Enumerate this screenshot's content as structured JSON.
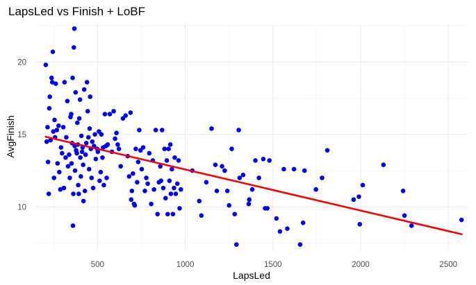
{
  "chart_data": {
    "type": "scatter",
    "title": "LapsLed vs Finish + LoBF",
    "xlabel": "LapsLed",
    "ylabel": "AvgFinish",
    "xlim": [
      150,
      2610
    ],
    "ylim": [
      7.0,
      22.6
    ],
    "x_ticks": [
      500,
      1000,
      1500,
      2000,
      2500
    ],
    "y_ticks": [
      10,
      15,
      20
    ],
    "grid": true,
    "point_color": "#0000ff",
    "line_color": "#ff0000",
    "trend_line": {
      "x": [
        200,
        2580
      ],
      "y": [
        14.85,
        8.1
      ]
    },
    "points": [
      [
        205,
        19.8
      ],
      [
        210,
        14.5
      ],
      [
        215,
        15.5
      ],
      [
        218,
        13.1
      ],
      [
        222,
        10.9
      ],
      [
        225,
        16.8
      ],
      [
        228,
        17.6
      ],
      [
        232,
        14.6
      ],
      [
        238,
        18.9
      ],
      [
        242,
        18.6
      ],
      [
        245,
        20.7
      ],
      [
        248,
        15.2
      ],
      [
        252,
        12.0
      ],
      [
        255,
        16.0
      ],
      [
        258,
        14.8
      ],
      [
        262,
        18.5
      ],
      [
        268,
        15.3
      ],
      [
        272,
        13.0
      ],
      [
        278,
        15.6
      ],
      [
        282,
        12.4
      ],
      [
        288,
        11.2
      ],
      [
        292,
        14.1
      ],
      [
        298,
        13.7
      ],
      [
        305,
        15.5
      ],
      [
        308,
        11.3
      ],
      [
        312,
        18.6
      ],
      [
        318,
        13.4
      ],
      [
        322,
        14.8
      ],
      [
        328,
        17.3
      ],
      [
        332,
        12.8
      ],
      [
        338,
        13.6
      ],
      [
        342,
        12.0
      ],
      [
        346,
        16.2
      ],
      [
        350,
        16.4
      ],
      [
        352,
        13.0
      ],
      [
        355,
        14.4
      ],
      [
        358,
        18.9
      ],
      [
        360,
        8.7
      ],
      [
        362,
        10.9
      ],
      [
        365,
        21.0
      ],
      [
        368,
        22.3
      ],
      [
        370,
        14.2
      ],
      [
        372,
        12.5
      ],
      [
        375,
        17.9
      ],
      [
        378,
        13.9
      ],
      [
        382,
        13.7
      ],
      [
        385,
        15.8
      ],
      [
        388,
        14.3
      ],
      [
        390,
        11.5
      ],
      [
        393,
        10.9
      ],
      [
        396,
        16.1
      ],
      [
        400,
        17.4
      ],
      [
        402,
        13.4
      ],
      [
        405,
        12.1
      ],
      [
        408,
        14.9
      ],
      [
        412,
        13.8
      ],
      [
        415,
        14.1
      ],
      [
        418,
        12.9
      ],
      [
        420,
        10.4
      ],
      [
        424,
        18.1
      ],
      [
        428,
        11.1
      ],
      [
        432,
        13.6
      ],
      [
        436,
        14.4
      ],
      [
        440,
        18.6
      ],
      [
        444,
        16.6
      ],
      [
        448,
        14.8
      ],
      [
        452,
        12.6
      ],
      [
        455,
        15.4
      ],
      [
        458,
        17.6
      ],
      [
        462,
        14.0
      ],
      [
        466,
        12.0
      ],
      [
        470,
        14.5
      ],
      [
        475,
        11.3
      ],
      [
        480,
        14.2
      ],
      [
        485,
        15.0
      ],
      [
        490,
        13.3
      ],
      [
        498,
        14.0
      ],
      [
        502,
        13.8
      ],
      [
        508,
        15.2
      ],
      [
        512,
        11.8
      ],
      [
        518,
        12.4
      ],
      [
        522,
        15.0
      ],
      [
        528,
        13.4
      ],
      [
        532,
        14.1
      ],
      [
        536,
        11.5
      ],
      [
        542,
        16.4
      ],
      [
        548,
        14.2
      ],
      [
        552,
        12.0
      ],
      [
        558,
        14.3
      ],
      [
        570,
        16.4
      ],
      [
        582,
        13.8
      ],
      [
        592,
        16.6
      ],
      [
        600,
        14.7
      ],
      [
        608,
        15.1
      ],
      [
        615,
        14.3
      ],
      [
        622,
        14.0
      ],
      [
        632,
        12.8
      ],
      [
        645,
        16.1
      ],
      [
        660,
        16.3
      ],
      [
        672,
        13.5
      ],
      [
        680,
        12.1
      ],
      [
        688,
        16.5
      ],
      [
        692,
        10.5
      ],
      [
        696,
        11.1
      ],
      [
        702,
        12.3
      ],
      [
        708,
        10.2
      ],
      [
        712,
        10.1
      ],
      [
        718,
        14.0
      ],
      [
        726,
        11.7
      ],
      [
        732,
        13.1
      ],
      [
        738,
        15.3
      ],
      [
        745,
        13.9
      ],
      [
        752,
        12.6
      ],
      [
        760,
        14.1
      ],
      [
        770,
        11.1
      ],
      [
        778,
        12.0
      ],
      [
        786,
        11.6
      ],
      [
        795,
        13.7
      ],
      [
        806,
        10.2
      ],
      [
        815,
        13.2
      ],
      [
        822,
        11.2
      ],
      [
        832,
        15.3
      ],
      [
        842,
        9.5
      ],
      [
        850,
        11.7
      ],
      [
        858,
        12.8
      ],
      [
        862,
        11.8
      ],
      [
        868,
        15.3
      ],
      [
        875,
        11.3
      ],
      [
        882,
        14.0
      ],
      [
        888,
        10.6
      ],
      [
        895,
        13.2
      ],
      [
        900,
        9.5
      ],
      [
        905,
        14.0
      ],
      [
        910,
        11.8
      ],
      [
        915,
        14.3
      ],
      [
        918,
        10.9
      ],
      [
        924,
        12.6
      ],
      [
        930,
        9.5
      ],
      [
        936,
        11.3
      ],
      [
        940,
        13.4
      ],
      [
        946,
        10.9
      ],
      [
        955,
        11.6
      ],
      [
        962,
        13.2
      ],
      [
        968,
        9.9
      ],
      [
        975,
        11.2
      ],
      [
        1040,
        12.5
      ],
      [
        1080,
        10.4
      ],
      [
        1092,
        9.4
      ],
      [
        1120,
        11.7
      ],
      [
        1150,
        15.4
      ],
      [
        1172,
        12.9
      ],
      [
        1180,
        11.1
      ],
      [
        1210,
        12.8
      ],
      [
        1225,
        12.5
      ],
      [
        1240,
        11.1
      ],
      [
        1250,
        10.1
      ],
      [
        1265,
        14.0
      ],
      [
        1282,
        9.5
      ],
      [
        1292,
        7.4
      ],
      [
        1305,
        15.3
      ],
      [
        1310,
        12.0
      ],
      [
        1330,
        12.2
      ],
      [
        1362,
        10.2
      ],
      [
        1365,
        10.5
      ],
      [
        1382,
        11.2
      ],
      [
        1400,
        13.2
      ],
      [
        1420,
        12.0
      ],
      [
        1445,
        13.3
      ],
      [
        1455,
        9.9
      ],
      [
        1468,
        9.9
      ],
      [
        1480,
        13.2
      ],
      [
        1520,
        9.2
      ],
      [
        1540,
        8.3
      ],
      [
        1562,
        12.6
      ],
      [
        1582,
        8.5
      ],
      [
        1620,
        12.6
      ],
      [
        1655,
        7.4
      ],
      [
        1672,
        8.9
      ],
      [
        1680,
        12.5
      ],
      [
        1745,
        11.2
      ],
      [
        1780,
        12.0
      ],
      [
        1810,
        13.9
      ],
      [
        1960,
        10.5
      ],
      [
        1990,
        10.7
      ],
      [
        1995,
        8.8
      ],
      [
        2012,
        11.5
      ],
      [
        2130,
        12.9
      ],
      [
        2242,
        11.1
      ],
      [
        2250,
        9.4
      ],
      [
        2290,
        8.7
      ],
      [
        2575,
        9.1
      ]
    ]
  }
}
